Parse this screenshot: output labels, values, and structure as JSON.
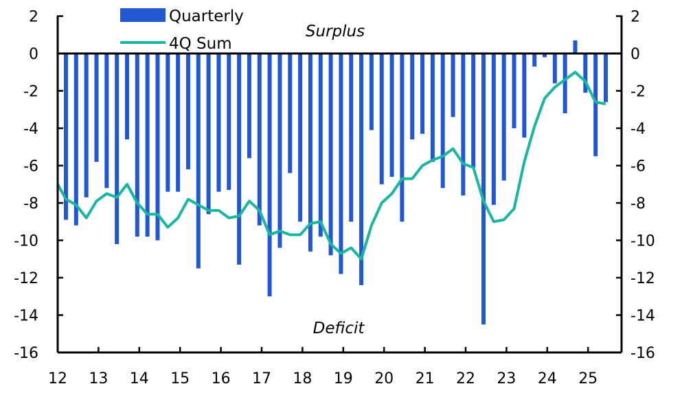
{
  "chart_data": {
    "type": "bar",
    "title": "",
    "xlabel": "",
    "ylabel": "",
    "ylim": [
      -16,
      2
    ],
    "yticks": [
      2,
      0,
      -2,
      -4,
      -6,
      -8,
      -10,
      -12,
      -14,
      -16
    ],
    "ytick_labels": [
      "2",
      "0",
      "-2",
      "-4",
      "-6",
      "-8",
      "-10",
      "-12",
      "-14",
      "-16"
    ],
    "xtick_labels": [
      "12",
      "13",
      "14",
      "15",
      "16",
      "17",
      "18",
      "19",
      "20",
      "21",
      "22",
      "23",
      "24",
      "25"
    ],
    "legend_placement": "top-left",
    "annotations": {
      "top": "Surplus",
      "bottom": "Deficit"
    },
    "colors": {
      "bars": "#2158D2",
      "line": "#19B6A2",
      "axis": "#000000"
    },
    "series": [
      {
        "name": "Quarterly",
        "type": "bar",
        "start": "2012Q1",
        "values": [
          -8.9,
          -9.2,
          -7.7,
          -5.8,
          -7.2,
          -10.2,
          -4.6,
          -9.8,
          -9.8,
          -10.0,
          -7.4,
          -7.4,
          -6.2,
          -11.5,
          -8.6,
          -7.4,
          -7.3,
          -11.3,
          -5.6,
          -9.2,
          -13.0,
          -10.4,
          -6.4,
          -9.0,
          -10.6,
          -9.8,
          -10.8,
          -11.8,
          -9.0,
          -12.4,
          -4.1,
          -7.0,
          -6.6,
          -9.0,
          -4.6,
          -4.3,
          -5.8,
          -7.2,
          -3.4,
          -7.6,
          -6.1,
          -14.5,
          -8.1,
          -6.8,
          -4.0,
          -4.5,
          -0.7,
          -0.2,
          -1.6,
          -3.2,
          0.7,
          -2.1,
          -5.5,
          -2.6
        ]
      },
      {
        "name": "4Q Sum",
        "type": "line",
        "start": "2011Q4",
        "values": [
          -7.0,
          -7.8,
          -8.1,
          -8.8,
          -7.9,
          -7.5,
          -7.7,
          -7.0,
          -8.0,
          -8.6,
          -8.6,
          -9.3,
          -8.8,
          -7.8,
          -8.1,
          -8.4,
          -8.4,
          -8.8,
          -8.7,
          -7.9,
          -8.4,
          -9.7,
          -9.5,
          -9.7,
          -9.7,
          -9.1,
          -9.0,
          -10.2,
          -10.7,
          -10.4,
          -11.0,
          -9.2,
          -8.0,
          -7.5,
          -6.7,
          -6.7,
          -6.0,
          -5.7,
          -5.5,
          -5.1,
          -5.9,
          -6.1,
          -7.9,
          -9.0,
          -8.9,
          -8.3,
          -5.8,
          -3.9,
          -2.4,
          -1.8,
          -1.4,
          -1.0,
          -1.5,
          -2.6,
          -2.7
        ]
      }
    ]
  }
}
